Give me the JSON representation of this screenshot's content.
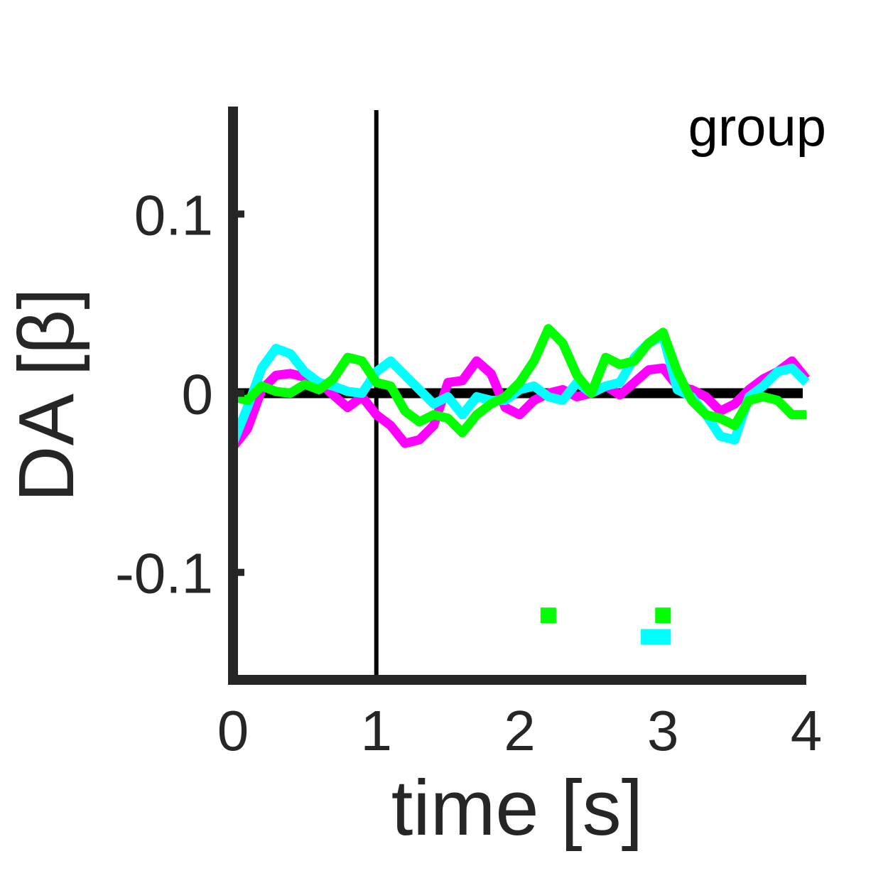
{
  "chart_data": {
    "type": "line",
    "annotation": "group",
    "xlabel": "time [s]",
    "ylabel": "DA [β]",
    "xlim": [
      0,
      4
    ],
    "ylim": [
      -0.16,
      0.16
    ],
    "xticks": [
      0,
      1,
      2,
      3,
      4
    ],
    "xtick_labels": [
      "0",
      "1",
      "2",
      "3",
      "4"
    ],
    "yticks": [
      -0.1,
      0,
      0.1
    ],
    "ytick_labels": [
      "-0.1",
      "0",
      "0.1"
    ],
    "grid": false,
    "reference_lines": {
      "vertical_x": 1,
      "horizontal_y": 0
    },
    "series": [
      {
        "color": "#ff00ff",
        "x": [
          0,
          0.1,
          0.2,
          0.3,
          0.4,
          0.5,
          0.6,
          0.7,
          0.8,
          0.9,
          1.0,
          1.1,
          1.2,
          1.3,
          1.4,
          1.5,
          1.6,
          1.7,
          1.8,
          1.9,
          2.0,
          2.1,
          2.2,
          2.3,
          2.4,
          2.5,
          2.6,
          2.7,
          2.8,
          2.9,
          3.0,
          3.1,
          3.2,
          3.3,
          3.4,
          3.5,
          3.6,
          3.7,
          3.8,
          3.9,
          4.0
        ],
        "y": [
          -0.03,
          -0.02,
          0.002,
          0.01,
          0.011,
          0.009,
          0.006,
          -0.001,
          -0.008,
          -0.002,
          -0.012,
          -0.018,
          -0.028,
          -0.026,
          -0.018,
          0.006,
          0.007,
          0.018,
          0.011,
          -0.008,
          -0.012,
          -0.004,
          0.0,
          0.002,
          -0.002,
          0.0,
          0.004,
          -0.001,
          0.006,
          0.013,
          0.014,
          0.004,
          0.002,
          -0.002,
          -0.01,
          -0.006,
          0.002,
          0.008,
          0.012,
          0.018,
          0.008
        ]
      },
      {
        "color": "#00ffff",
        "x": [
          0,
          0.1,
          0.2,
          0.3,
          0.4,
          0.5,
          0.6,
          0.7,
          0.8,
          0.9,
          1.0,
          1.1,
          1.2,
          1.3,
          1.4,
          1.5,
          1.6,
          1.7,
          1.8,
          1.9,
          2.0,
          2.1,
          2.2,
          2.3,
          2.4,
          2.5,
          2.6,
          2.7,
          2.8,
          2.9,
          3.0,
          3.1,
          3.2,
          3.3,
          3.4,
          3.5,
          3.6,
          3.7,
          3.8,
          3.9,
          4.0
        ],
        "y": [
          -0.028,
          -0.008,
          0.014,
          0.025,
          0.022,
          0.012,
          0.006,
          0.004,
          0.001,
          0.0,
          0.012,
          0.018,
          0.01,
          0.002,
          -0.006,
          -0.002,
          -0.012,
          -0.002,
          -0.004,
          -0.004,
          0.002,
          0.004,
          -0.002,
          -0.004,
          0.006,
          0.0,
          0.004,
          0.006,
          0.02,
          0.028,
          0.032,
          0.002,
          -0.002,
          -0.012,
          -0.024,
          -0.026,
          -0.002,
          0.004,
          0.012,
          0.014,
          0.006
        ]
      },
      {
        "color": "#00ff00",
        "x": [
          0,
          0.1,
          0.2,
          0.3,
          0.4,
          0.5,
          0.6,
          0.7,
          0.8,
          0.9,
          1.0,
          1.1,
          1.2,
          1.3,
          1.4,
          1.5,
          1.6,
          1.7,
          1.8,
          1.9,
          2.0,
          2.1,
          2.2,
          2.3,
          2.4,
          2.5,
          2.6,
          2.7,
          2.8,
          2.9,
          3.0,
          3.1,
          3.2,
          3.3,
          3.4,
          3.5,
          3.6,
          3.7,
          3.8,
          3.9,
          4.0
        ],
        "y": [
          -0.002,
          -0.004,
          0.004,
          0.001,
          0.0,
          0.005,
          0.002,
          0.008,
          0.02,
          0.018,
          0.006,
          0.004,
          -0.01,
          -0.016,
          -0.012,
          -0.014,
          -0.022,
          -0.012,
          -0.006,
          -0.002,
          0.006,
          0.018,
          0.036,
          0.028,
          0.01,
          0.0,
          0.02,
          0.016,
          0.018,
          0.028,
          0.034,
          0.012,
          -0.004,
          -0.012,
          -0.014,
          -0.018,
          -0.004,
          -0.002,
          -0.004,
          -0.012,
          -0.012
        ]
      }
    ],
    "significance_markers": [
      {
        "color": "#00ff00",
        "x": 2.2,
        "y": -0.124
      },
      {
        "color": "#00ff00",
        "x": 3.0,
        "y": -0.124
      },
      {
        "color": "#00ffff",
        "x": 2.9,
        "y": -0.136
      },
      {
        "color": "#00ffff",
        "x": 3.0,
        "y": -0.136
      }
    ]
  }
}
